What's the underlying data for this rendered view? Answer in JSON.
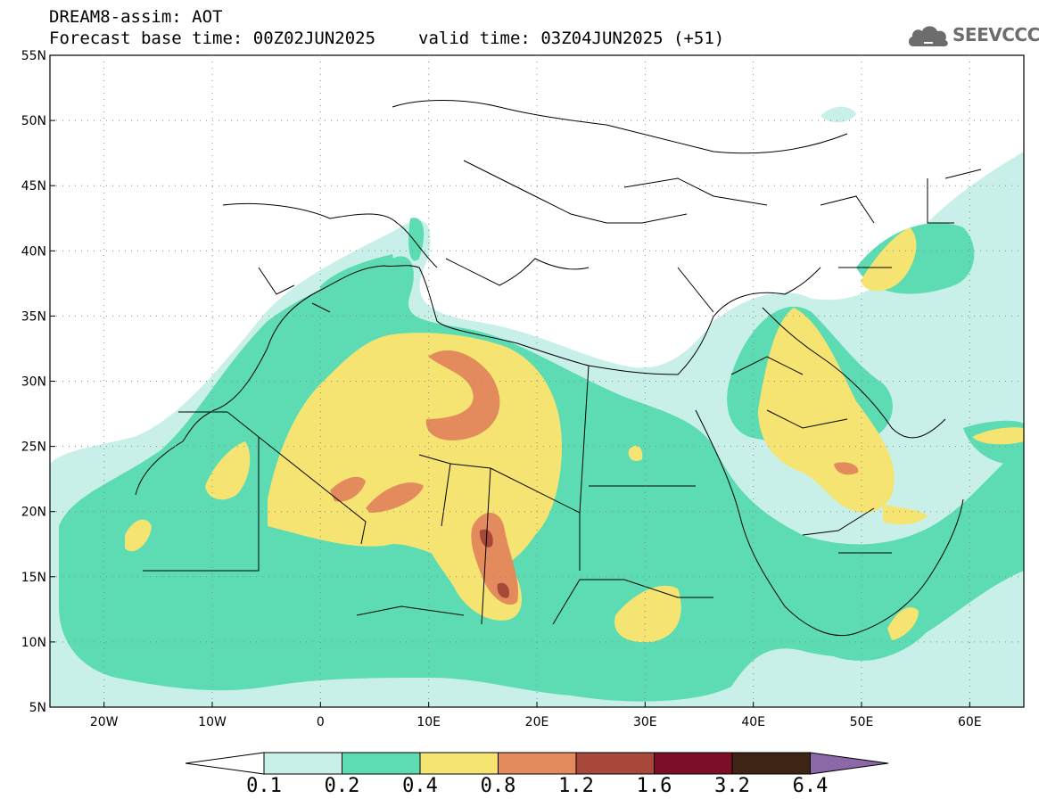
{
  "header": {
    "product": "DREAM8-assim: AOT",
    "base_time": "Forecast base time: 00Z02JUN2025",
    "valid_time": "valid time: 03Z04JUN2025 (+51)"
  },
  "logo": {
    "text": "SEEVCCC",
    "icon": "cloud-icon"
  },
  "map": {
    "variable": "Aerosol Optical Thickness",
    "lon_range": [
      -25,
      65
    ],
    "lat_range": [
      5,
      55
    ],
    "lat_ticks": [
      "5N",
      "10N",
      "15N",
      "20N",
      "25N",
      "30N",
      "35N",
      "40N",
      "45N",
      "50N",
      "55N"
    ],
    "lon_ticks": [
      "20W",
      "10W",
      "0",
      "10E",
      "20E",
      "30E",
      "40E",
      "50E",
      "60E"
    ],
    "grid": "dotted"
  },
  "colorbar": {
    "labels": [
      "0.1",
      "0.2",
      "0.4",
      "0.8",
      "1.2",
      "1.6",
      "3.2",
      "6.4"
    ],
    "colors": [
      "#ffffff",
      "#c8f0e8",
      "#5ddcb4",
      "#f5e472",
      "#e38b5c",
      "#a8483a",
      "#7a0f27",
      "#3e2414",
      "#8c68a8"
    ]
  },
  "colors": {
    "level_0_1": "#c8f0e8",
    "level_0_2": "#5ddcb4",
    "level_0_4": "#f5e472",
    "level_0_8": "#e38b5c",
    "level_1_2": "#a8483a",
    "border": "#000000",
    "logo": "#6d6d6d"
  }
}
